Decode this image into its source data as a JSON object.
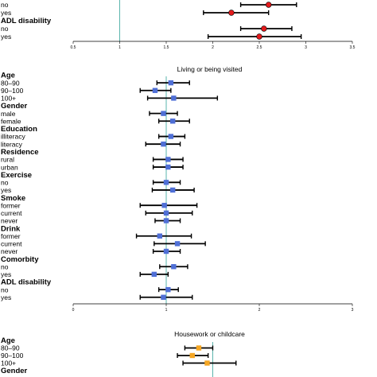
{
  "colors": {
    "marker_red": "#e31a1c",
    "marker_blue": "#4f6fd6",
    "marker_orange": "#f5a623",
    "reference_line": "#5ab4ac",
    "whisker": "#000000"
  },
  "chart_data": [
    {
      "type": "forest",
      "title": "",
      "xlim": [
        0.5,
        3.5
      ],
      "ticks": [
        "0.5",
        "1",
        "1.5",
        "2",
        "2.5",
        "3",
        "3.5"
      ],
      "tick_values": [
        0.5,
        1,
        1.5,
        2,
        2.5,
        3,
        3.5
      ],
      "reference": 1,
      "marker": "red",
      "rows": [
        {
          "kind": "item",
          "label": "no",
          "est": 2.6,
          "lo": 2.3,
          "hi": 2.9
        },
        {
          "kind": "item",
          "label": "yes",
          "est": 2.2,
          "lo": 1.9,
          "hi": 2.6
        },
        {
          "kind": "header",
          "label": "ADL disability"
        },
        {
          "kind": "item",
          "label": "no",
          "est": 2.55,
          "lo": 2.3,
          "hi": 2.85
        },
        {
          "kind": "item",
          "label": "yes",
          "est": 2.5,
          "lo": 1.95,
          "hi": 2.95
        }
      ]
    },
    {
      "type": "forest",
      "title": "Living or being visited",
      "xlim": [
        0,
        3
      ],
      "ticks": [
        "0",
        "1",
        "2",
        "3"
      ],
      "tick_values": [
        0,
        1,
        2,
        3
      ],
      "reference": 1,
      "marker": "blue",
      "rows": [
        {
          "kind": "header",
          "label": "Age"
        },
        {
          "kind": "item",
          "label": "80–90",
          "est": 1.05,
          "lo": 0.9,
          "hi": 1.25
        },
        {
          "kind": "item",
          "label": "90–100",
          "est": 0.88,
          "lo": 0.72,
          "hi": 1.05
        },
        {
          "kind": "item",
          "label": "100+",
          "est": 1.08,
          "lo": 0.8,
          "hi": 1.55
        },
        {
          "kind": "header",
          "label": "Gender"
        },
        {
          "kind": "item",
          "label": "male",
          "est": 0.97,
          "lo": 0.82,
          "hi": 1.12
        },
        {
          "kind": "item",
          "label": "female",
          "est": 1.07,
          "lo": 0.92,
          "hi": 1.25
        },
        {
          "kind": "header",
          "label": "Education"
        },
        {
          "kind": "item",
          "label": "illiteracy",
          "est": 1.05,
          "lo": 0.92,
          "hi": 1.2
        },
        {
          "kind": "item",
          "label": "literacy",
          "est": 0.97,
          "lo": 0.78,
          "hi": 1.15
        },
        {
          "kind": "header",
          "label": "Residence"
        },
        {
          "kind": "item",
          "label": "rural",
          "est": 1.02,
          "lo": 0.86,
          "hi": 1.18
        },
        {
          "kind": "item",
          "label": "urban",
          "est": 1.02,
          "lo": 0.86,
          "hi": 1.18
        },
        {
          "kind": "header",
          "label": "Exercise"
        },
        {
          "kind": "item",
          "label": "no",
          "est": 1.0,
          "lo": 0.86,
          "hi": 1.15
        },
        {
          "kind": "item",
          "label": "yes",
          "est": 1.07,
          "lo": 0.85,
          "hi": 1.3
        },
        {
          "kind": "header",
          "label": "Smoke"
        },
        {
          "kind": "item",
          "label": "former",
          "est": 0.98,
          "lo": 0.72,
          "hi": 1.33
        },
        {
          "kind": "item",
          "label": "current",
          "est": 1.0,
          "lo": 0.78,
          "hi": 1.28
        },
        {
          "kind": "item",
          "label": "never",
          "est": 1.0,
          "lo": 0.88,
          "hi": 1.15
        },
        {
          "kind": "header",
          "label": "Drink"
        },
        {
          "kind": "item",
          "label": "former",
          "est": 0.93,
          "lo": 0.68,
          "hi": 1.27
        },
        {
          "kind": "item",
          "label": "current",
          "est": 1.12,
          "lo": 0.87,
          "hi": 1.42
        },
        {
          "kind": "item",
          "label": "never",
          "est": 1.0,
          "lo": 0.86,
          "hi": 1.15
        },
        {
          "kind": "header",
          "label": "Comorbity"
        },
        {
          "kind": "item",
          "label": "no",
          "est": 1.08,
          "lo": 0.93,
          "hi": 1.23
        },
        {
          "kind": "item",
          "label": "yes",
          "est": 0.87,
          "lo": 0.72,
          "hi": 1.02
        },
        {
          "kind": "header",
          "label": "ADL disability"
        },
        {
          "kind": "item",
          "label": "no",
          "est": 1.02,
          "lo": 0.92,
          "hi": 1.13
        },
        {
          "kind": "item",
          "label": "yes",
          "est": 0.97,
          "lo": 0.72,
          "hi": 1.28
        }
      ]
    },
    {
      "type": "forest",
      "title": "Housework or childcare",
      "xlim": [
        0,
        3
      ],
      "ticks": [],
      "tick_values": [],
      "reference": 1.5,
      "marker": "orange",
      "rows": [
        {
          "kind": "header",
          "label": "Age"
        },
        {
          "kind": "item",
          "label": "80–90",
          "est": 1.35,
          "lo": 1.2,
          "hi": 1.5
        },
        {
          "kind": "item",
          "label": "90–100",
          "est": 1.28,
          "lo": 1.12,
          "hi": 1.45
        },
        {
          "kind": "item",
          "label": "100+",
          "est": 1.44,
          "lo": 1.18,
          "hi": 1.75
        },
        {
          "kind": "header",
          "label": "Gender"
        }
      ]
    }
  ]
}
